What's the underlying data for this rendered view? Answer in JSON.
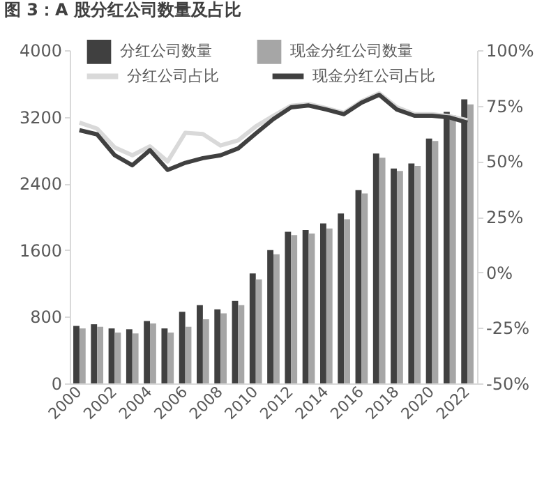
{
  "chart_data": {
    "type": "bar",
    "title": "图 3：A 股分红公司数量及占比",
    "categories": [
      "2000",
      null,
      "2002",
      null,
      "2004",
      null,
      "2006",
      null,
      "2008",
      null,
      "2010",
      null,
      "2012",
      null,
      "2014",
      null,
      "2016",
      null,
      "2018",
      null,
      "2020",
      null,
      "2022"
    ],
    "series": [
      {
        "name": "分红公司数量",
        "type": "bar",
        "color": "#404040",
        "values": [
          690,
          710,
          660,
          650,
          750,
          660,
          860,
          940,
          890,
          990,
          1320,
          1600,
          1820,
          1840,
          1920,
          2040,
          2320,
          2760,
          2580,
          2640,
          2940,
          3260,
          3410
        ]
      },
      {
        "name": "现金分红公司数量",
        "type": "bar",
        "color": "#a6a6a6",
        "values": [
          660,
          680,
          610,
          600,
          720,
          610,
          680,
          770,
          840,
          940,
          1250,
          1550,
          1780,
          1800,
          1860,
          1970,
          2280,
          2710,
          2550,
          2610,
          2910,
          3220,
          3350
        ]
      },
      {
        "name": "分红公司占比",
        "type": "line",
        "axis": "y2",
        "color": "#d9d9d9",
        "values": [
          67.4,
          64.7,
          56.2,
          52.7,
          56.7,
          49.9,
          62.8,
          62.3,
          57.1,
          59.4,
          65.7,
          70.5,
          75.0,
          75.8,
          73.9,
          71.8,
          77.0,
          80.6,
          74.3,
          71.2,
          71.2,
          70.3,
          68.5
        ]
      },
      {
        "name": "现金分红公司占比",
        "type": "line",
        "axis": "y2",
        "color": "#404040",
        "values": [
          64.0,
          62.1,
          52.7,
          48.2,
          55.0,
          46.1,
          49.3,
          51.4,
          52.7,
          55.8,
          62.5,
          69.0,
          74.3,
          75.1,
          73.3,
          71.2,
          76.4,
          79.9,
          73.3,
          70.5,
          70.5,
          69.7,
          67.4
        ]
      }
    ],
    "ylim": [
      0,
      4000
    ],
    "yticks": [
      0,
      800,
      1600,
      2400,
      3200,
      4000
    ],
    "y2lim": [
      -50,
      100
    ],
    "y2ticks": [
      {
        "value": -50,
        "label": "-50%"
      },
      {
        "value": -25,
        "label": "-25%"
      },
      {
        "value": 0,
        "label": "0%"
      },
      {
        "value": 25,
        "label": "25%"
      },
      {
        "value": 50,
        "label": "50%"
      },
      {
        "value": 75,
        "label": "75%"
      },
      {
        "value": 100,
        "label": "100%"
      }
    ],
    "grid": false,
    "legend": "top"
  }
}
